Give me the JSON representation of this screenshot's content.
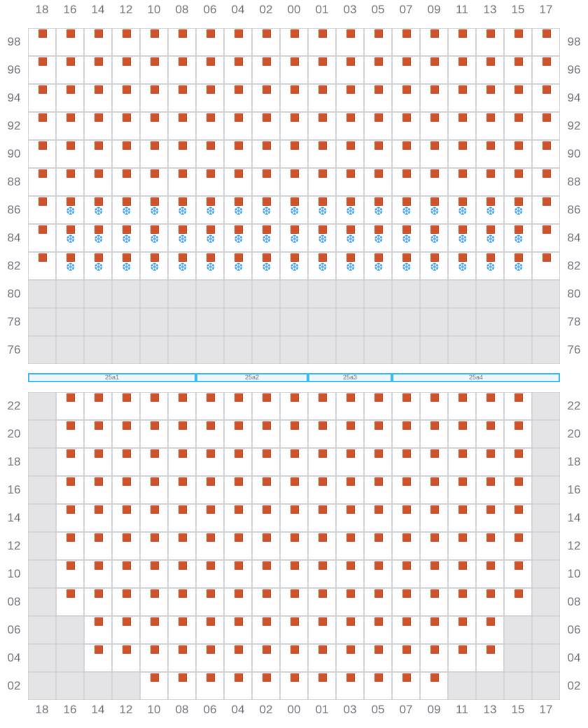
{
  "colors": {
    "occupied": "#cf522a",
    "unavailable": "#e4e4e7",
    "grid": "#d4d4d8",
    "cooling": "#4aa3e8",
    "segment": "#38bdf8"
  },
  "columns": [
    "18",
    "16",
    "14",
    "12",
    "10",
    "08",
    "06",
    "04",
    "02",
    "00",
    "01",
    "03",
    "05",
    "07",
    "09",
    "11",
    "13",
    "15",
    "17"
  ],
  "legend_codes": {
    "o": "occupied",
    "os": "occupied-cooled (snowflake-icon)",
    "g": "unavailable"
  },
  "top_section": {
    "rows": [
      {
        "label": "98",
        "cells": [
          "o",
          "o",
          "o",
          "o",
          "o",
          "o",
          "o",
          "o",
          "o",
          "o",
          "o",
          "o",
          "o",
          "o",
          "o",
          "o",
          "o",
          "o",
          "o"
        ]
      },
      {
        "label": "96",
        "cells": [
          "o",
          "o",
          "o",
          "o",
          "o",
          "o",
          "o",
          "o",
          "o",
          "o",
          "o",
          "o",
          "o",
          "o",
          "o",
          "o",
          "o",
          "o",
          "o"
        ]
      },
      {
        "label": "94",
        "cells": [
          "o",
          "o",
          "o",
          "o",
          "o",
          "o",
          "o",
          "o",
          "o",
          "o",
          "o",
          "o",
          "o",
          "o",
          "o",
          "o",
          "o",
          "o",
          "o"
        ]
      },
      {
        "label": "92",
        "cells": [
          "o",
          "o",
          "o",
          "o",
          "o",
          "o",
          "o",
          "o",
          "o",
          "o",
          "o",
          "o",
          "o",
          "o",
          "o",
          "o",
          "o",
          "o",
          "o"
        ]
      },
      {
        "label": "90",
        "cells": [
          "o",
          "o",
          "o",
          "o",
          "o",
          "o",
          "o",
          "o",
          "o",
          "o",
          "o",
          "o",
          "o",
          "o",
          "o",
          "o",
          "o",
          "o",
          "o"
        ]
      },
      {
        "label": "88",
        "cells": [
          "o",
          "o",
          "o",
          "o",
          "o",
          "o",
          "o",
          "o",
          "o",
          "o",
          "o",
          "o",
          "o",
          "o",
          "o",
          "o",
          "o",
          "o",
          "o"
        ]
      },
      {
        "label": "86",
        "cells": [
          "o",
          "os",
          "os",
          "os",
          "os",
          "os",
          "os",
          "os",
          "os",
          "os",
          "os",
          "os",
          "os",
          "os",
          "os",
          "os",
          "os",
          "os",
          "o"
        ]
      },
      {
        "label": "84",
        "cells": [
          "o",
          "os",
          "os",
          "os",
          "os",
          "os",
          "os",
          "os",
          "os",
          "os",
          "os",
          "os",
          "os",
          "os",
          "os",
          "os",
          "os",
          "os",
          "o"
        ]
      },
      {
        "label": "82",
        "cells": [
          "o",
          "os",
          "os",
          "os",
          "os",
          "os",
          "os",
          "os",
          "os",
          "os",
          "os",
          "os",
          "os",
          "os",
          "os",
          "os",
          "os",
          "os",
          "o"
        ]
      },
      {
        "label": "80",
        "cells": [
          "g",
          "g",
          "g",
          "g",
          "g",
          "g",
          "g",
          "g",
          "g",
          "g",
          "g",
          "g",
          "g",
          "g",
          "g",
          "g",
          "g",
          "g",
          "g"
        ]
      },
      {
        "label": "78",
        "cells": [
          "g",
          "g",
          "g",
          "g",
          "g",
          "g",
          "g",
          "g",
          "g",
          "g",
          "g",
          "g",
          "g",
          "g",
          "g",
          "g",
          "g",
          "g",
          "g"
        ]
      },
      {
        "label": "76",
        "cells": [
          "g",
          "g",
          "g",
          "g",
          "g",
          "g",
          "g",
          "g",
          "g",
          "g",
          "g",
          "g",
          "g",
          "g",
          "g",
          "g",
          "g",
          "g",
          "g"
        ]
      }
    ]
  },
  "segments": [
    {
      "label": "25a1",
      "span": 6
    },
    {
      "label": "25a2",
      "span": 4
    },
    {
      "label": "25a3",
      "span": 3
    },
    {
      "label": "25a4",
      "span": 6
    }
  ],
  "bottom_section": {
    "rows": [
      {
        "label": "22",
        "cells": [
          "g",
          "o",
          "o",
          "o",
          "o",
          "o",
          "o",
          "o",
          "o",
          "o",
          "o",
          "o",
          "o",
          "o",
          "o",
          "o",
          "o",
          "o",
          "g"
        ]
      },
      {
        "label": "20",
        "cells": [
          "g",
          "o",
          "o",
          "o",
          "o",
          "o",
          "o",
          "o",
          "o",
          "o",
          "o",
          "o",
          "o",
          "o",
          "o",
          "o",
          "o",
          "o",
          "g"
        ]
      },
      {
        "label": "18",
        "cells": [
          "g",
          "o",
          "o",
          "o",
          "o",
          "o",
          "o",
          "o",
          "o",
          "o",
          "o",
          "o",
          "o",
          "o",
          "o",
          "o",
          "o",
          "o",
          "g"
        ]
      },
      {
        "label": "16",
        "cells": [
          "g",
          "o",
          "o",
          "o",
          "o",
          "o",
          "o",
          "o",
          "o",
          "o",
          "o",
          "o",
          "o",
          "o",
          "o",
          "o",
          "o",
          "o",
          "g"
        ]
      },
      {
        "label": "14",
        "cells": [
          "g",
          "o",
          "o",
          "o",
          "o",
          "o",
          "o",
          "o",
          "o",
          "o",
          "o",
          "o",
          "o",
          "o",
          "o",
          "o",
          "o",
          "o",
          "g"
        ]
      },
      {
        "label": "12",
        "cells": [
          "g",
          "o",
          "o",
          "o",
          "o",
          "o",
          "o",
          "o",
          "o",
          "o",
          "o",
          "o",
          "o",
          "o",
          "o",
          "o",
          "o",
          "o",
          "g"
        ]
      },
      {
        "label": "10",
        "cells": [
          "g",
          "o",
          "o",
          "o",
          "o",
          "o",
          "o",
          "o",
          "o",
          "o",
          "o",
          "o",
          "o",
          "o",
          "o",
          "o",
          "o",
          "o",
          "g"
        ]
      },
      {
        "label": "08",
        "cells": [
          "g",
          "o",
          "o",
          "o",
          "o",
          "o",
          "o",
          "o",
          "o",
          "o",
          "o",
          "o",
          "o",
          "o",
          "o",
          "o",
          "o",
          "o",
          "g"
        ]
      },
      {
        "label": "06",
        "cells": [
          "g",
          "g",
          "o",
          "o",
          "o",
          "o",
          "o",
          "o",
          "o",
          "o",
          "o",
          "o",
          "o",
          "o",
          "o",
          "o",
          "o",
          "g",
          "g"
        ]
      },
      {
        "label": "04",
        "cells": [
          "g",
          "g",
          "o",
          "o",
          "o",
          "o",
          "o",
          "o",
          "o",
          "o",
          "o",
          "o",
          "o",
          "o",
          "o",
          "o",
          "o",
          "g",
          "g"
        ]
      },
      {
        "label": "02",
        "cells": [
          "g",
          "g",
          "g",
          "g",
          "o",
          "o",
          "o",
          "o",
          "o",
          "o",
          "o",
          "o",
          "o",
          "o",
          "o",
          "g",
          "g",
          "g",
          "g"
        ]
      }
    ]
  }
}
